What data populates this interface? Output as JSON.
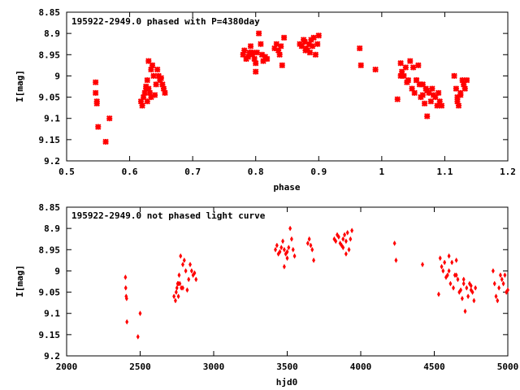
{
  "chart_data": [
    {
      "type": "scatter",
      "title": "195922-2949.0 phased with P=4380day",
      "xlabel": "phase",
      "ylabel": "I[mag]",
      "xlim": [
        0.5,
        1.2
      ],
      "ylim": [
        8.85,
        9.2
      ],
      "y_inverted": true,
      "x_ticks": [
        "0.5",
        "0.6",
        "0.7",
        "0.8",
        "0.9",
        "1",
        "1.1",
        "1.2"
      ],
      "y_ticks": [
        "8.85",
        "8.9",
        "8.95",
        "9",
        "9.05",
        "9.1",
        "9.15",
        "9.2"
      ],
      "marker": "star",
      "color": "#ff0000",
      "series": [
        {
          "x": [
            0.546,
            0.546,
            0.548,
            0.548,
            0.55,
            0.562,
            0.568,
            0.618,
            0.62,
            0.622,
            0.624,
            0.626,
            0.628,
            0.628,
            0.63,
            0.63,
            0.632,
            0.634,
            0.636,
            0.638,
            0.64,
            0.642,
            0.644,
            0.646,
            0.648,
            0.65,
            0.652,
            0.654,
            0.656,
            0.634,
            0.626,
            0.78,
            0.782,
            0.785,
            0.788,
            0.79,
            0.792,
            0.795,
            0.798,
            0.8,
            0.802,
            0.805,
            0.808,
            0.81,
            0.812,
            0.815,
            0.818,
            0.8,
            0.795,
            0.83,
            0.833,
            0.836,
            0.838,
            0.84,
            0.845,
            0.842,
            0.87,
            0.873,
            0.876,
            0.878,
            0.88,
            0.882,
            0.885,
            0.888,
            0.89,
            0.892,
            0.895,
            0.898,
            0.9,
            0.886,
            0.879,
            0.965,
            0.967,
            0.99,
            1.025,
            1.03,
            1.032,
            1.035,
            1.038,
            1.04,
            1.042,
            1.045,
            1.048,
            1.05,
            1.052,
            1.055,
            1.058,
            1.06,
            1.062,
            1.065,
            1.068,
            1.07,
            1.072,
            1.075,
            1.078,
            1.08,
            1.082,
            1.085,
            1.088,
            1.09,
            1.092,
            1.095,
            1.03,
            1.055,
            1.065,
            1.072,
            1.115,
            1.118,
            1.12,
            1.122,
            1.125,
            1.128,
            1.13,
            1.132,
            1.135,
            1.12,
            1.125
          ],
          "y": [
            9.015,
            9.04,
            9.06,
            9.065,
            9.12,
            9.155,
            9.1,
            9.06,
            9.07,
            9.05,
            9.04,
            9.03,
            9.06,
            9.01,
            9.03,
            8.965,
            9.04,
            8.985,
            8.975,
            9.0,
            9.045,
            9.02,
            8.985,
            9.0,
            9.01,
            9.005,
            9.02,
            9.03,
            9.04,
            9.05,
            9.025,
            8.95,
            8.94,
            8.96,
            8.955,
            8.945,
            8.93,
            8.95,
            8.96,
            8.97,
            8.945,
            8.9,
            8.925,
            8.95,
            8.965,
            8.955,
            8.96,
            8.99,
            8.945,
            8.935,
            8.925,
            8.94,
            8.95,
            8.93,
            8.91,
            8.975,
            8.925,
            8.93,
            8.915,
            8.92,
            8.935,
            8.94,
            8.925,
            8.915,
            8.93,
            8.91,
            8.95,
            8.925,
            8.905,
            8.945,
            8.94,
            8.935,
            8.975,
            8.985,
            9.055,
            8.97,
            8.99,
            9.0,
            8.98,
            9.015,
            9.01,
            8.965,
            9.03,
            8.98,
            9.04,
            9.01,
            8.975,
            9.02,
            9.05,
            9.045,
            9.065,
            9.03,
            9.095,
            9.04,
            9.06,
            9.03,
            9.045,
            9.05,
            9.07,
            9.04,
            9.06,
            9.07,
            9.0,
            9.01,
            9.02,
            9.035,
            9.0,
            9.03,
            9.06,
            9.07,
            9.04,
            9.01,
            9.02,
            9.03,
            9.01,
            9.05,
            9.045
          ]
        }
      ]
    },
    {
      "type": "scatter",
      "title": "195922-2949.0 not phased light curve",
      "xlabel": "hjd0",
      "ylabel": "I[mag]",
      "xlim": [
        2000,
        5000
      ],
      "ylim": [
        8.85,
        9.2
      ],
      "y_inverted": true,
      "x_ticks": [
        "2000",
        "2500",
        "3000",
        "3500",
        "4000",
        "4500",
        "5000"
      ],
      "y_ticks": [
        "8.85",
        "8.9",
        "8.95",
        "9",
        "9.05",
        "9.1",
        "9.15",
        "9.2"
      ],
      "marker": "diamond",
      "color": "#ff0000",
      "series": [
        {
          "x": [
            2400,
            2402,
            2405,
            2408,
            2410,
            2485,
            2500,
            2730,
            2740,
            2745,
            2750,
            2755,
            2760,
            2765,
            2770,
            2775,
            2780,
            2790,
            2800,
            2810,
            2820,
            2830,
            2840,
            2850,
            2860,
            2870,
            2880,
            2760,
            2790,
            3420,
            3430,
            3440,
            3450,
            3460,
            3470,
            3480,
            3490,
            3500,
            3510,
            3520,
            3530,
            3540,
            3550,
            3480,
            3500,
            3640,
            3650,
            3660,
            3670,
            3680,
            3820,
            3830,
            3840,
            3850,
            3860,
            3870,
            3880,
            3890,
            3900,
            3910,
            3920,
            3930,
            3940,
            3880,
            3900,
            4230,
            4240,
            4420,
            4530,
            4540,
            4550,
            4560,
            4570,
            4580,
            4590,
            4600,
            4610,
            4620,
            4630,
            4640,
            4650,
            4660,
            4670,
            4680,
            4690,
            4700,
            4710,
            4720,
            4730,
            4740,
            4750,
            4760,
            4770,
            4780,
            4600,
            4650,
            4700,
            4750,
            4900,
            4910,
            4920,
            4930,
            4940,
            4950,
            4960,
            4970,
            4980,
            4990,
            5000
          ],
          "y": [
            9.015,
            9.04,
            9.06,
            9.065,
            9.12,
            9.155,
            9.1,
            9.06,
            9.07,
            9.05,
            9.04,
            9.03,
            9.06,
            9.01,
            9.03,
            8.965,
            9.04,
            8.985,
            8.975,
            9.0,
            9.045,
            9.02,
            8.985,
            9.0,
            9.01,
            9.005,
            9.02,
            9.03,
            9.04,
            8.95,
            8.94,
            8.96,
            8.955,
            8.945,
            8.93,
            8.95,
            8.96,
            8.97,
            8.945,
            8.9,
            8.925,
            8.95,
            8.965,
            8.99,
            8.955,
            8.935,
            8.925,
            8.94,
            8.95,
            8.975,
            8.925,
            8.93,
            8.915,
            8.92,
            8.935,
            8.94,
            8.925,
            8.915,
            8.93,
            8.91,
            8.95,
            8.925,
            8.905,
            8.945,
            8.96,
            8.935,
            8.975,
            8.985,
            9.055,
            8.97,
            8.99,
            9.0,
            8.98,
            9.015,
            9.01,
            8.965,
            9.03,
            8.98,
            9.04,
            9.01,
            8.975,
            9.02,
            9.05,
            9.045,
            9.065,
            9.03,
            9.095,
            9.04,
            9.06,
            9.03,
            9.045,
            9.05,
            9.07,
            9.04,
            9.0,
            9.01,
            9.02,
            9.035,
            9.0,
            9.03,
            9.06,
            9.07,
            9.04,
            9.01,
            9.02,
            9.03,
            9.01,
            9.05,
            9.045
          ]
        }
      ]
    }
  ]
}
